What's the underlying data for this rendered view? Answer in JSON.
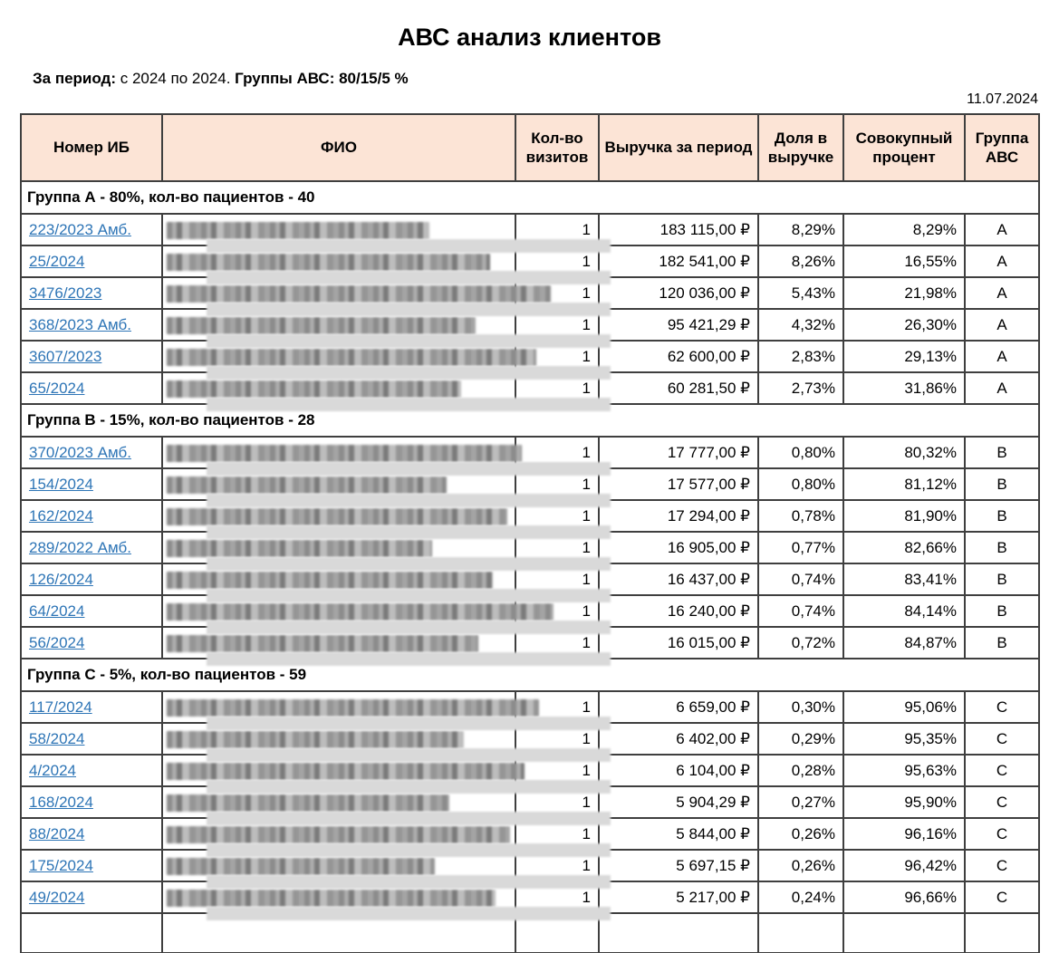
{
  "title": "АВС анализ клиентов",
  "subtitle": {
    "period_label": "За период:",
    "period_value": " с 2024 по 2024. ",
    "groups_label": "Группы АВС:",
    "groups_value": " 80/15/5 %"
  },
  "date": "11.07.2024",
  "colors": {
    "header_bg": "#fce4d6",
    "link": "#2e75b6",
    "border": "#3f3f3f",
    "redaction_gray": "#d9d9d9"
  },
  "table": {
    "columns": [
      "Номер ИБ",
      "ФИО",
      "Кол-во визитов",
      "Выручка за период",
      "Доля в выручке",
      "Совокупный процент",
      "Группа АВС"
    ],
    "fio_redacted": true,
    "groups": [
      {
        "header": "Группа А - 80%, кол-во пациентов - 40",
        "rows": [
          {
            "id": "223/2023 Амб.",
            "visits": "1",
            "revenue": "183 115,00 ₽",
            "share": "8,29%",
            "cumulative": "8,29%",
            "group": "А"
          },
          {
            "id": "25/2024",
            "visits": "1",
            "revenue": "182 541,00 ₽",
            "share": "8,26%",
            "cumulative": "16,55%",
            "group": "А"
          },
          {
            "id": "3476/2023",
            "visits": "1",
            "revenue": "120 036,00 ₽",
            "share": "5,43%",
            "cumulative": "21,98%",
            "group": "А"
          },
          {
            "id": "368/2023 Амб.",
            "visits": "1",
            "revenue": "95 421,29 ₽",
            "share": "4,32%",
            "cumulative": "26,30%",
            "group": "А"
          },
          {
            "id": "3607/2023",
            "visits": "1",
            "revenue": "62 600,00 ₽",
            "share": "2,83%",
            "cumulative": "29,13%",
            "group": "А"
          },
          {
            "id": "65/2024",
            "visits": "1",
            "revenue": "60 281,50 ₽",
            "share": "2,73%",
            "cumulative": "31,86%",
            "group": "А"
          }
        ]
      },
      {
        "header": "Группа В - 15%, кол-во пациентов - 28",
        "rows": [
          {
            "id": "370/2023 Амб.",
            "visits": "1",
            "revenue": "17 777,00 ₽",
            "share": "0,80%",
            "cumulative": "80,32%",
            "group": "В"
          },
          {
            "id": "154/2024",
            "visits": "1",
            "revenue": "17 577,00 ₽",
            "share": "0,80%",
            "cumulative": "81,12%",
            "group": "В"
          },
          {
            "id": "162/2024",
            "visits": "1",
            "revenue": "17 294,00 ₽",
            "share": "0,78%",
            "cumulative": "81,90%",
            "group": "В"
          },
          {
            "id": "289/2022 Амб.",
            "visits": "1",
            "revenue": "16 905,00 ₽",
            "share": "0,77%",
            "cumulative": "82,66%",
            "group": "В"
          },
          {
            "id": "126/2024",
            "visits": "1",
            "revenue": "16 437,00 ₽",
            "share": "0,74%",
            "cumulative": "83,41%",
            "group": "В"
          },
          {
            "id": "64/2024",
            "visits": "1",
            "revenue": "16 240,00 ₽",
            "share": "0,74%",
            "cumulative": "84,14%",
            "group": "В"
          },
          {
            "id": "56/2024",
            "visits": "1",
            "revenue": "16 015,00 ₽",
            "share": "0,72%",
            "cumulative": "84,87%",
            "group": "В"
          }
        ]
      },
      {
        "header": "Группа С - 5%, кол-во пациентов - 59",
        "rows": [
          {
            "id": "117/2024",
            "visits": "1",
            "revenue": "6 659,00 ₽",
            "share": "0,30%",
            "cumulative": "95,06%",
            "group": "С"
          },
          {
            "id": "58/2024",
            "visits": "1",
            "revenue": "6 402,00 ₽",
            "share": "0,29%",
            "cumulative": "95,35%",
            "group": "С"
          },
          {
            "id": "4/2024",
            "visits": "1",
            "revenue": "6 104,00 ₽",
            "share": "0,28%",
            "cumulative": "95,63%",
            "group": "С"
          },
          {
            "id": "168/2024",
            "visits": "1",
            "revenue": "5 904,29 ₽",
            "share": "0,27%",
            "cumulative": "95,90%",
            "group": "С"
          },
          {
            "id": "88/2024",
            "visits": "1",
            "revenue": "5 844,00 ₽",
            "share": "0,26%",
            "cumulative": "96,16%",
            "group": "С"
          },
          {
            "id": "175/2024",
            "visits": "1",
            "revenue": "5 697,15 ₽",
            "share": "0,26%",
            "cumulative": "96,42%",
            "group": "С"
          },
          {
            "id": "49/2024",
            "visits": "1",
            "revenue": "5 217,00 ₽",
            "share": "0,24%",
            "cumulative": "96,66%",
            "group": "С"
          }
        ]
      }
    ]
  }
}
